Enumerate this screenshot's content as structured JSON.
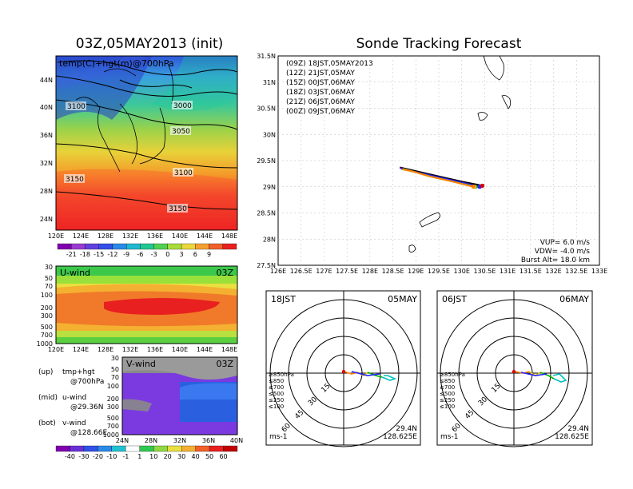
{
  "left_title": "03Z,05MAY2013 (init)",
  "right_title": "Sonde Tracking Forecast",
  "map_panel": {
    "label": "temp(C)+hgt(m)@700hPa",
    "lat_ticks": [
      "44N",
      "40N",
      "36N",
      "32N",
      "28N",
      "24N"
    ],
    "lon_ticks": [
      "120E",
      "124E",
      "128E",
      "132E",
      "136E",
      "140E",
      "144E",
      "148E"
    ],
    "contour_labels": [
      "3100",
      "3000",
      "3050",
      "3100",
      "3150",
      "3150"
    ],
    "temp_colorbar": [
      "-21",
      "-18",
      "-15",
      "-12",
      "-9",
      "-6",
      "-3",
      "0",
      "3",
      "6",
      "9"
    ]
  },
  "u_panel": {
    "label": "U-wind",
    "time": "03Z",
    "p_ticks": [
      "30",
      "50",
      "70",
      "100",
      "200",
      "300",
      "500",
      "700",
      "1000"
    ],
    "lon_ticks": [
      "120E",
      "124E",
      "128E",
      "132E",
      "136E",
      "140E",
      "144E",
      "148E"
    ]
  },
  "v_panel": {
    "label": "V-wind",
    "time": "03Z",
    "p_ticks": [
      "30",
      "50",
      "70",
      "100",
      "200",
      "300",
      "500",
      "700",
      "1000"
    ],
    "lat_ticks": [
      "24N",
      "28N",
      "32N",
      "36N",
      "40N"
    ]
  },
  "wind_colorbar": [
    "-40",
    "-30",
    "-20",
    "-10",
    "-1",
    "1",
    "10",
    "20",
    "30",
    "40",
    "50",
    "60"
  ],
  "notes": [
    {
      "a": "(up)",
      "b": "tmp+hgt",
      "c": "@700hPa"
    },
    {
      "a": "(mid)",
      "b": "u-wind",
      "c": "@29.36N"
    },
    {
      "a": "(bot)",
      "b": "v-wind",
      "c": "@128.66E"
    }
  ],
  "track_map": {
    "lat_ticks": [
      "31.5N",
      "31N",
      "30.5N",
      "30N",
      "29.5N",
      "29N",
      "28.5N",
      "28N",
      "27.5N"
    ],
    "lon_ticks": [
      "126E",
      "126.5E",
      "127E",
      "127.5E",
      "128E",
      "128.5E",
      "129E",
      "129.5E",
      "130E",
      "130.5E",
      "131E",
      "131.5E",
      "132E",
      "132.5E",
      "133E"
    ],
    "legend": [
      {
        "text": "(09Z)  18JST,05MAY2013",
        "color": "#000000"
      },
      {
        "text": "(12Z)  21JST,05MAY",
        "color": "#b000b0"
      },
      {
        "text": "(15Z)  00JST,06MAY",
        "color": "#2222ff"
      },
      {
        "text": "(18Z)  03JST,06MAY",
        "color": "#00b000"
      },
      {
        "text": "(21Z)  06JST,06MAY",
        "color": "#e8c000"
      },
      {
        "text": "(00Z)  09JST,06MAY",
        "color": "#ff8000"
      }
    ],
    "params": [
      "VUP=  6.0  m/s",
      "VDW=  -4.0  m/s",
      "Burst Alt=  18.0  km"
    ]
  },
  "hodo_left": {
    "time": "18JST",
    "date": "05MAY",
    "lat": "29.4N",
    "lon": "128.625E",
    "unit": "ms-1",
    "rings": [
      "15",
      "30",
      "45",
      "60"
    ],
    "levels": [
      {
        "t": "≥850hPa",
        "c": "#ff0000"
      },
      {
        "t": "≤850",
        "c": "#ff8000"
      },
      {
        "t": "≤700",
        "c": "#e8c000"
      },
      {
        "t": "≤500",
        "c": "#00b000"
      },
      {
        "t": "≤250",
        "c": "#00c0c0"
      },
      {
        "t": "≤100",
        "c": "#2222ff"
      }
    ]
  },
  "hodo_right": {
    "time": "06JST",
    "date": "06MAY",
    "lat": "29.4N",
    "lon": "128.625E",
    "unit": "ms-1",
    "rings": [
      "15",
      "30",
      "45",
      "60"
    ],
    "levels": [
      {
        "t": "≥850hPa",
        "c": "#ff0000"
      },
      {
        "t": "≤850",
        "c": "#ff8000"
      },
      {
        "t": "≤700",
        "c": "#e8c000"
      },
      {
        "t": "≤500",
        "c": "#00b000"
      },
      {
        "t": "≤250",
        "c": "#00c0c0"
      },
      {
        "t": "≤100",
        "c": "#2222ff"
      }
    ]
  },
  "chart_data": [
    {
      "type": "heatmap",
      "title": "03Z,05MAY2013 (init)",
      "label": "temp(C)+hgt(m)@700hPa",
      "x_range": [
        "120E",
        "149E"
      ],
      "y_range": [
        "22N",
        "47N"
      ],
      "contours_m": [
        3000,
        3050,
        3100,
        3150
      ],
      "colorbar_C": [
        -21,
        -18,
        -15,
        -12,
        -9,
        -6,
        -3,
        0,
        3,
        6,
        9
      ]
    },
    {
      "type": "heatmap",
      "label": "U-wind",
      "time": "03Z",
      "x_range": [
        "120E",
        "149E"
      ],
      "y_axis_hPa": [
        30,
        50,
        70,
        100,
        200,
        300,
        500,
        700,
        1000
      ],
      "jet_core_hPa": 200,
      "colorbar_ms": [
        -40,
        -30,
        -20,
        -10,
        -1,
        1,
        10,
        20,
        30,
        40,
        50,
        60
      ]
    },
    {
      "type": "heatmap",
      "label": "V-wind",
      "time": "03Z",
      "x_range": [
        "24N",
        "40N"
      ],
      "y_axis_hPa": [
        30,
        50,
        70,
        100,
        200,
        300,
        500,
        700,
        1000
      ],
      "colorbar_ms": [
        -40,
        -30,
        -20,
        -10,
        -1,
        1,
        10,
        20,
        30,
        40,
        50,
        60
      ]
    },
    {
      "type": "line",
      "title": "Sonde Tracking Forecast",
      "xlim": [
        126,
        133
      ],
      "ylim": [
        27.5,
        31.5
      ],
      "launch": {
        "lon": 130.45,
        "lat": 29.02
      },
      "series": [
        {
          "name": "(09Z)  18JST,05MAY2013",
          "x": [
            130.45,
            130.0,
            129.5,
            129.0,
            128.65
          ],
          "y": [
            29.02,
            29.1,
            29.2,
            29.3,
            29.37
          ]
        },
        {
          "name": "(12Z)  21JST,05MAY",
          "x": [
            130.4,
            129.9,
            129.4,
            128.9,
            128.65
          ],
          "y": [
            29.0,
            29.1,
            29.2,
            29.3,
            29.36
          ]
        },
        {
          "name": "(15Z)  00JST,06MAY",
          "x": [
            130.38,
            129.9,
            129.4,
            128.9,
            128.68
          ],
          "y": [
            29.0,
            29.1,
            29.2,
            29.3,
            29.35
          ]
        },
        {
          "name": "(18Z)  03JST,06MAY",
          "x": [
            130.3,
            129.8,
            129.3,
            128.9,
            128.7
          ],
          "y": [
            29.0,
            29.1,
            29.2,
            29.3,
            29.34
          ]
        },
        {
          "name": "(21Z)  06JST,06MAY",
          "x": [
            130.28,
            129.8,
            129.3,
            128.9,
            128.72
          ],
          "y": [
            29.0,
            29.1,
            29.2,
            29.3,
            29.34
          ]
        },
        {
          "name": "(00Z)  09JST,06MAY",
          "x": [
            130.25,
            129.8,
            129.3,
            128.9,
            128.72
          ],
          "y": [
            29.0,
            29.1,
            29.2,
            29.3,
            29.33
          ]
        }
      ],
      "params": {
        "VUP_ms": 6.0,
        "VDW_ms": -4.0,
        "burst_alt_km": 18.0
      }
    }
  ]
}
